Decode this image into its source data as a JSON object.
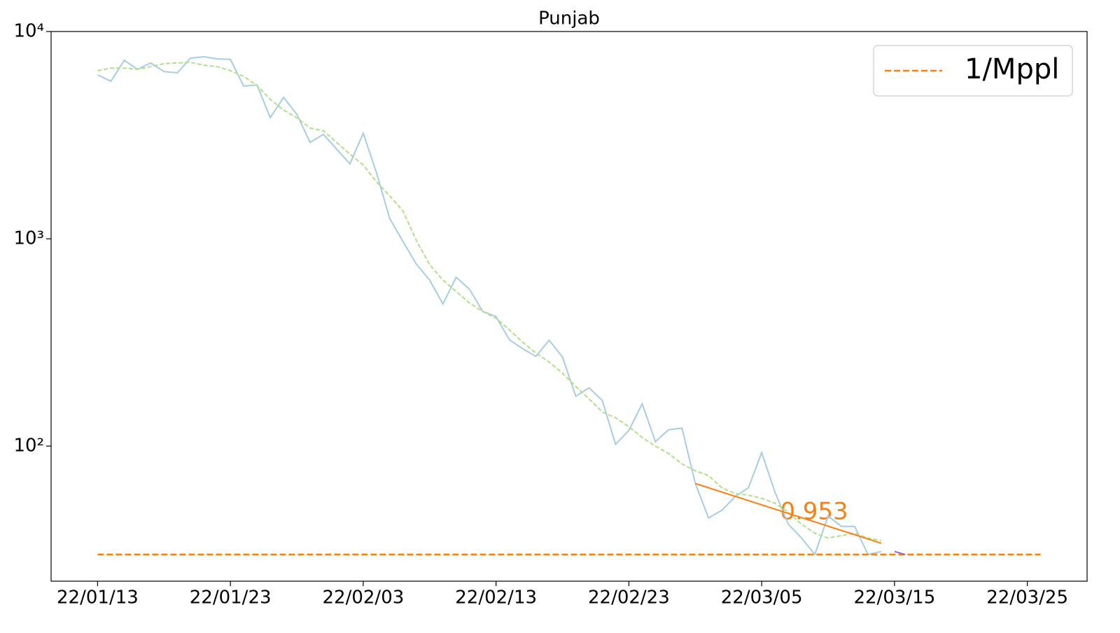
{
  "chart_data": {
    "type": "line",
    "title": "Punjab",
    "log_y": true,
    "legend": "upper right",
    "xlim": [
      -3.5,
      74.5
    ],
    "xticks": [
      {
        "value": 0,
        "label": "22/01/13"
      },
      {
        "value": 10,
        "label": "22/01/23"
      },
      {
        "value": 20,
        "label": "22/02/03"
      },
      {
        "value": 30,
        "label": "22/02/13"
      },
      {
        "value": 40,
        "label": "22/02/23"
      },
      {
        "value": 50,
        "label": "22/03/05"
      },
      {
        "value": 60,
        "label": "22/03/15"
      },
      {
        "value": 70,
        "label": "22/03/25"
      }
    ],
    "ylim": [
      22.3,
      10000
    ],
    "yticks": [
      {
        "value": 100,
        "label": "10²"
      },
      {
        "value": 1000,
        "label": "10³"
      },
      {
        "value": 10000,
        "label": "10⁴"
      }
    ],
    "annotations": [
      "0.953"
    ],
    "series": [
      {
        "color": "#a6cee3",
        "linestyle": "solid",
        "x": [
          0,
          1,
          2,
          3,
          4,
          5,
          6,
          7,
          8,
          9,
          10,
          11,
          12,
          13,
          14,
          15,
          16,
          17,
          18,
          19,
          20,
          21,
          22,
          23,
          24,
          25,
          26,
          27,
          28,
          29,
          30,
          31,
          32,
          33,
          34,
          35,
          36,
          37,
          38,
          39,
          40,
          41,
          42,
          43,
          44,
          45,
          46,
          47,
          48,
          49,
          50,
          51,
          52,
          53,
          54,
          55,
          56,
          57,
          58,
          59
        ],
        "values": [
          6180,
          5750,
          7260,
          6570,
          7050,
          6410,
          6320,
          7440,
          7560,
          7380,
          7330,
          5450,
          5530,
          3840,
          4810,
          3990,
          2920,
          3190,
          2710,
          2300,
          3230,
          2080,
          1250,
          970,
          755,
          632,
          485,
          652,
          571,
          446,
          422,
          326,
          295,
          271,
          324,
          269,
          174,
          191,
          166,
          102,
          119,
          160,
          105,
          120,
          122,
          66,
          45,
          49,
          57,
          63,
          93,
          60,
          42,
          36,
          30,
          46,
          41,
          41,
          30,
          31
        ]
      },
      {
        "color": "#b2df8a",
        "linestyle": "dashed",
        "x": [
          0,
          1,
          2,
          3,
          4,
          5,
          6,
          7,
          8,
          9,
          10,
          11,
          12,
          13,
          14,
          15,
          16,
          17,
          18,
          19,
          20,
          21,
          22,
          23,
          24,
          25,
          26,
          27,
          28,
          29,
          30,
          31,
          32,
          33,
          34,
          35,
          36,
          37,
          38,
          39,
          40,
          41,
          42,
          43,
          44,
          45,
          46,
          47,
          48,
          49,
          50,
          51,
          52,
          53,
          54,
          55,
          56,
          57,
          58,
          59
        ],
        "values": [
          6470,
          6660,
          6660,
          6570,
          6770,
          7000,
          7050,
          7100,
          6880,
          6770,
          6470,
          6080,
          5490,
          4700,
          4180,
          3840,
          3420,
          3320,
          2920,
          2560,
          2270,
          1880,
          1610,
          1360,
          980,
          750,
          632,
          557,
          490,
          446,
          414,
          364,
          317,
          281,
          254,
          225,
          194,
          169,
          146,
          137,
          124,
          110,
          100,
          92,
          82,
          76,
          72,
          63,
          59,
          58,
          56,
          53,
          48,
          42,
          38,
          36,
          37,
          38,
          36,
          35
        ]
      },
      {
        "color": "#ff7f0e",
        "linestyle": "solid",
        "x": [
          45,
          59
        ],
        "values": [
          66,
          34
        ]
      },
      {
        "name": "1/Mppl",
        "color": "#ff7f0e",
        "linestyle": "dashed",
        "x": [
          0,
          71
        ],
        "values": [
          30,
          30
        ]
      },
      {
        "color": "#9467bd",
        "linestyle": "solid",
        "x": [
          60,
          60.8
        ],
        "values": [
          31,
          30
        ]
      }
    ]
  }
}
